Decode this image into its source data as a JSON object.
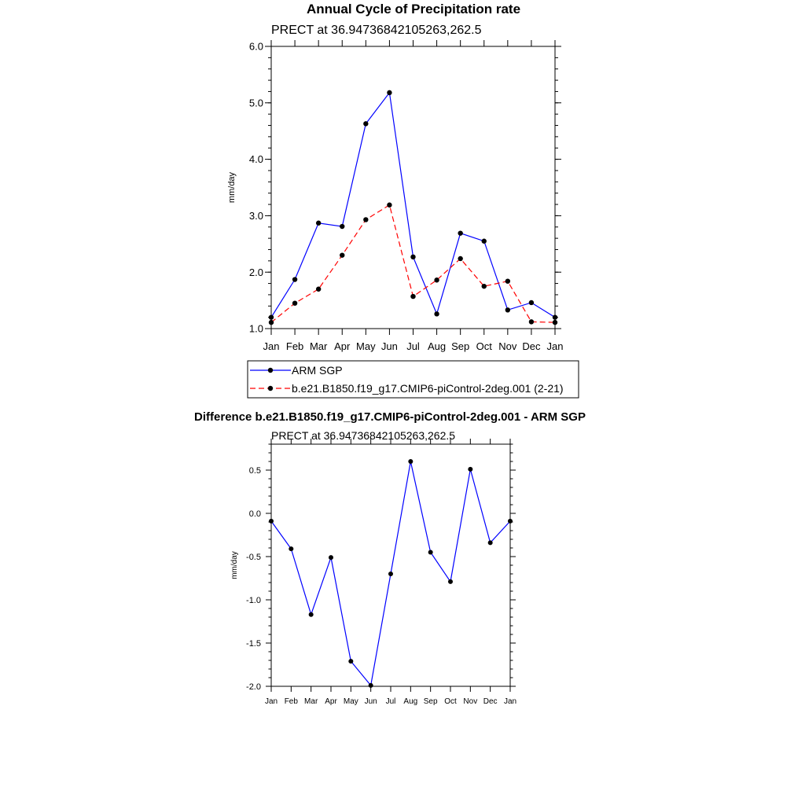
{
  "page_title": "Annual Cycle of Precipitation rate",
  "diff_title": "Difference b.e21.B1850.f19_g17.CMIP6-piControl-2deg.001 - ARM SGP",
  "colors": {
    "obs": "#0000ff",
    "model": "#ff0000",
    "marker": "#000000",
    "axis": "#000000"
  },
  "chart_data": [
    {
      "type": "line",
      "subtitle": "PRECT at 36.94736842105263,262.5",
      "ylabel": "mm/day",
      "xlabel": "",
      "categories": [
        "Jan",
        "Feb",
        "Mar",
        "Apr",
        "May",
        "Jun",
        "Jul",
        "Aug",
        "Sep",
        "Oct",
        "Nov",
        "Dec",
        "Jan"
      ],
      "ylim": [
        1.0,
        6.0
      ],
      "yticks": [
        1.0,
        2.0,
        3.0,
        4.0,
        5.0,
        6.0
      ],
      "ytick_labels": [
        "1.0",
        "2.0",
        "3.0",
        "4.0",
        "5.0",
        "6.0"
      ],
      "legend_position": "bottom",
      "series": [
        {
          "name": "ARM SGP",
          "style": "solid",
          "color": "#0000ff",
          "values": [
            1.2,
            1.87,
            2.87,
            2.81,
            4.63,
            5.18,
            2.27,
            1.26,
            2.69,
            2.55,
            1.33,
            1.46,
            1.2
          ]
        },
        {
          "name": "b.e21.B1850.f19_g17.CMIP6-piControl-2deg.001 (2-21)",
          "style": "dashed",
          "color": "#ff0000",
          "values": [
            1.11,
            1.45,
            1.7,
            2.3,
            2.93,
            3.19,
            1.57,
            1.86,
            2.24,
            1.75,
            1.84,
            1.12,
            1.11
          ]
        }
      ]
    },
    {
      "type": "line",
      "subtitle": "PRECT at 36.94736842105263,262.5",
      "ylabel": "mm/day",
      "xlabel": "",
      "categories": [
        "Jan",
        "Feb",
        "Mar",
        "Apr",
        "May",
        "Jun",
        "Jul",
        "Aug",
        "Sep",
        "Oct",
        "Nov",
        "Dec",
        "Jan"
      ],
      "ylim": [
        -2.0,
        0.8
      ],
      "yticks": [
        -2.0,
        -1.5,
        -1.0,
        -0.5,
        0.0,
        0.5
      ],
      "ytick_labels": [
        "-2.0",
        "-1.5",
        "-1.0",
        "-0.5",
        "0.0",
        "0.5"
      ],
      "series": [
        {
          "name": "",
          "style": "solid",
          "color": "#0000ff",
          "values": [
            -0.09,
            -0.41,
            -1.17,
            -0.51,
            -1.71,
            -1.99,
            -0.7,
            0.6,
            -0.45,
            -0.79,
            0.51,
            -0.34,
            -0.09
          ]
        }
      ]
    }
  ]
}
